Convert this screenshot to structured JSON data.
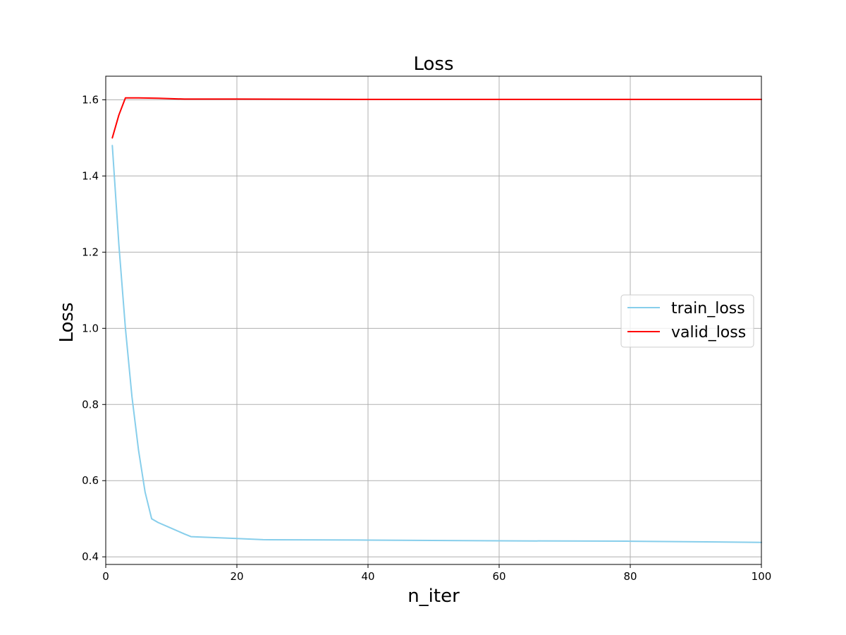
{
  "chart_data": {
    "type": "line",
    "title": "Loss",
    "xlabel": "n_iter",
    "ylabel": "Loss",
    "xlim": [
      0,
      100
    ],
    "ylim": [
      0.38,
      1.662
    ],
    "xticks": [
      0,
      20,
      40,
      60,
      80,
      100
    ],
    "yticks": [
      0.4,
      0.6,
      0.8,
      1.0,
      1.2,
      1.4,
      1.6
    ],
    "x_tick_labels": [
      "0",
      "20",
      "40",
      "60",
      "80",
      "100"
    ],
    "y_tick_labels": [
      "0.4",
      "0.6",
      "0.8",
      "1.0",
      "1.2",
      "1.4",
      "1.6"
    ],
    "grid": true,
    "legend_position": "center-right",
    "series": [
      {
        "name": "train_loss",
        "color": "#87ceeb",
        "x": [
          1,
          2,
          3,
          4,
          5,
          6,
          7,
          8,
          10,
          12,
          13,
          20,
          24,
          40,
          60,
          80,
          100
        ],
        "y": [
          1.48,
          1.22,
          1.0,
          0.82,
          0.68,
          0.57,
          0.5,
          0.49,
          0.475,
          0.46,
          0.453,
          0.448,
          0.445,
          0.444,
          0.442,
          0.441,
          0.438
        ]
      },
      {
        "name": "valid_loss",
        "color": "#ff0000",
        "x": [
          1,
          2,
          3,
          5,
          8,
          12,
          20,
          40,
          60,
          80,
          100
        ],
        "y": [
          1.5,
          1.56,
          1.605,
          1.605,
          1.604,
          1.602,
          1.602,
          1.601,
          1.601,
          1.601,
          1.601
        ]
      }
    ]
  }
}
